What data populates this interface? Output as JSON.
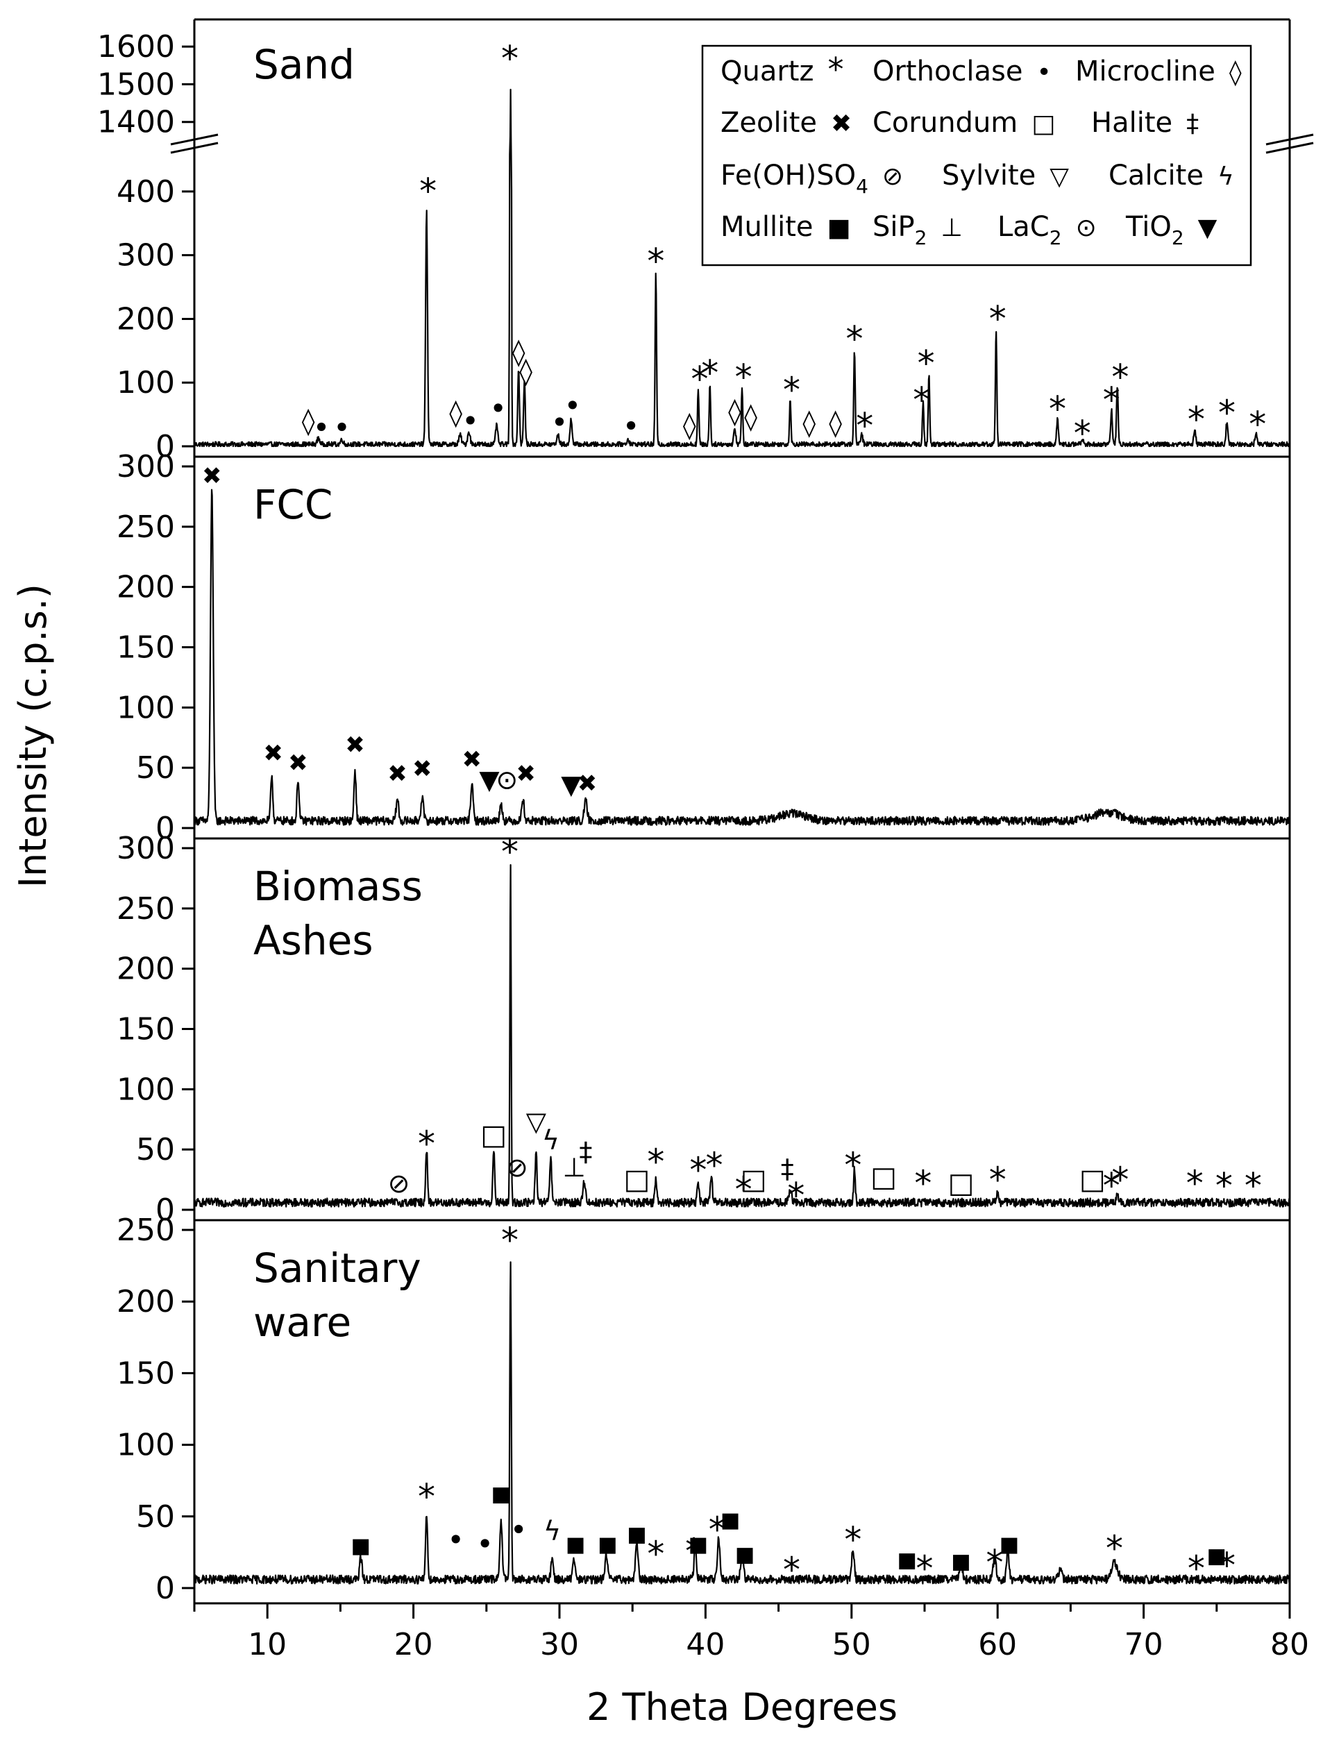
{
  "chart_data": {
    "type": "line",
    "title": "",
    "xlabel": "2 Theta Degrees",
    "ylabel": "Intensity (c.p.s.)",
    "xlim": [
      5,
      80
    ],
    "xticks": [
      "10",
      "20",
      "30",
      "40",
      "50",
      "60",
      "70",
      "80"
    ],
    "legend": [
      {
        "name": "Quartz",
        "symbol": "*"
      },
      {
        "name": "Orthoclase",
        "symbol": "•"
      },
      {
        "name": "Microcline",
        "symbol": "◊"
      },
      {
        "name": "Zeolite",
        "symbol": "✖"
      },
      {
        "name": "Corundum",
        "symbol": "□"
      },
      {
        "name": "Halite",
        "symbol": "‡"
      },
      {
        "name": "Fe(OH)SO",
        "sub": "4",
        "symbol": "⊘"
      },
      {
        "name": "Sylvite",
        "symbol": "▽"
      },
      {
        "name": "Calcite",
        "symbol": "ϟ"
      },
      {
        "name": "Mullite",
        "symbol": "■"
      },
      {
        "name": "SiP",
        "sub": "2",
        "symbol": "⊥"
      },
      {
        "name": "LaC",
        "sub": "2",
        "symbol": "⊙"
      },
      {
        "name": "TiO",
        "sub": "2",
        "symbol": "▼"
      }
    ],
    "series": [
      {
        "name": "Sand",
        "label_lines": [
          "Sand"
        ],
        "ylim": [
          0,
          450
        ],
        "yticks": [
          "0",
          "100",
          "200",
          "300",
          "400"
        ],
        "broken": true,
        "upper_ylim": [
          1370,
          1650
        ],
        "upper_yticks": [
          "1400",
          "1500",
          "1600"
        ],
        "noise": 4,
        "baseline": 3,
        "peaks": [
          [
            13.5,
            10,
            0.12
          ],
          [
            15.1,
            8,
            0.12
          ],
          [
            20.9,
            370,
            0.09
          ],
          [
            23.2,
            15,
            0.12
          ],
          [
            23.8,
            20,
            0.12
          ],
          [
            25.7,
            32,
            0.1
          ],
          [
            26.65,
            1500,
            0.06
          ],
          [
            27.2,
            120,
            0.08
          ],
          [
            27.6,
            100,
            0.08
          ],
          [
            29.9,
            14,
            0.12
          ],
          [
            30.8,
            40,
            0.1
          ],
          [
            34.7,
            8,
            0.12
          ],
          [
            36.6,
            270,
            0.07
          ],
          [
            39.5,
            85,
            0.07
          ],
          [
            40.3,
            95,
            0.07
          ],
          [
            42.0,
            25,
            0.1
          ],
          [
            42.5,
            90,
            0.07
          ],
          [
            45.8,
            72,
            0.07
          ],
          [
            50.2,
            150,
            0.07
          ],
          [
            50.7,
            15,
            0.1
          ],
          [
            54.9,
            65,
            0.07
          ],
          [
            55.3,
            110,
            0.07
          ],
          [
            59.9,
            180,
            0.07
          ],
          [
            64.1,
            40,
            0.08
          ],
          [
            65.8,
            10,
            0.1
          ],
          [
            67.8,
            55,
            0.08
          ],
          [
            68.2,
            90,
            0.08
          ],
          [
            73.5,
            22,
            0.1
          ],
          [
            75.7,
            35,
            0.09
          ],
          [
            77.7,
            18,
            0.1
          ]
        ],
        "markers": [
          [
            "*",
            21.0,
            410
          ],
          [
            "*",
            26.6,
            1585
          ],
          [
            "*",
            36.6,
            300
          ],
          [
            "*",
            39.6,
            115
          ],
          [
            "*",
            40.3,
            125
          ],
          [
            "*",
            42.6,
            118
          ],
          [
            "*",
            45.9,
            98
          ],
          [
            "*",
            50.2,
            178
          ],
          [
            "*",
            50.9,
            42
          ],
          [
            "*",
            55.1,
            140
          ],
          [
            "*",
            54.8,
            82
          ],
          [
            "*",
            60.0,
            210
          ],
          [
            "*",
            64.1,
            68
          ],
          [
            "*",
            65.8,
            30
          ],
          [
            "*",
            67.8,
            82
          ],
          [
            "*",
            68.4,
            118
          ],
          [
            "*",
            73.6,
            52
          ],
          [
            "*",
            75.7,
            62
          ],
          [
            "*",
            77.8,
            44
          ],
          [
            "•",
            13.7,
            28
          ],
          [
            "•",
            15.1,
            28
          ],
          [
            "•",
            23.9,
            38
          ],
          [
            "•",
            25.8,
            58
          ],
          [
            "•",
            30.0,
            36
          ],
          [
            "•",
            30.9,
            62
          ],
          [
            "•",
            34.9,
            30
          ],
          [
            "◊",
            12.8,
            40
          ],
          [
            "◊",
            22.9,
            53
          ],
          [
            "◊",
            27.2,
            148
          ],
          [
            "◊",
            27.7,
            118
          ],
          [
            "◊",
            38.9,
            33
          ],
          [
            "◊",
            42.0,
            55
          ],
          [
            "◊",
            43.1,
            47
          ],
          [
            "◊",
            47.1,
            37
          ],
          [
            "◊",
            48.9,
            37
          ]
        ]
      },
      {
        "name": "FCC",
        "label_lines": [
          "FCC"
        ],
        "ylim": [
          0,
          300
        ],
        "yticks": [
          "0",
          "50",
          "100",
          "150",
          "200",
          "250",
          "300"
        ],
        "noise": 3.5,
        "baseline": 6,
        "peaks": [
          [
            6.2,
            275,
            0.13
          ],
          [
            10.3,
            38,
            0.1
          ],
          [
            12.1,
            35,
            0.1
          ],
          [
            16.0,
            42,
            0.1
          ],
          [
            18.9,
            18,
            0.12
          ],
          [
            20.6,
            20,
            0.12
          ],
          [
            24.0,
            30,
            0.12
          ],
          [
            26.0,
            14,
            0.12
          ],
          [
            27.5,
            18,
            0.12
          ],
          [
            31.8,
            16,
            0.14
          ],
          [
            46.0,
            6,
            1.3
          ],
          [
            67.5,
            7,
            1.3
          ]
        ],
        "markers": [
          [
            "✖",
            6.2,
            293
          ],
          [
            "✖",
            10.4,
            63
          ],
          [
            "✖",
            12.1,
            55
          ],
          [
            "✖",
            16.0,
            70
          ],
          [
            "✖",
            18.9,
            46
          ],
          [
            "✖",
            20.6,
            50
          ],
          [
            "✖",
            24.0,
            58
          ],
          [
            "✖",
            27.7,
            46
          ],
          [
            "✖",
            31.9,
            38
          ],
          [
            "▼",
            25.2,
            40
          ],
          [
            "▼",
            30.8,
            36
          ],
          [
            "⊙",
            26.4,
            40
          ]
        ]
      },
      {
        "name": "Biomass Ashes",
        "label_lines": [
          "Biomass",
          "Ashes"
        ],
        "ylim": [
          0,
          300
        ],
        "yticks": [
          "0",
          "50",
          "100",
          "150",
          "200",
          "250",
          "300"
        ],
        "noise": 3.5,
        "baseline": 6,
        "peaks": [
          [
            20.9,
            45,
            0.09
          ],
          [
            25.5,
            42,
            0.09
          ],
          [
            26.65,
            280,
            0.06
          ],
          [
            28.4,
            42,
            0.09
          ],
          [
            29.4,
            38,
            0.09
          ],
          [
            31.7,
            18,
            0.12
          ],
          [
            36.6,
            20,
            0.1
          ],
          [
            39.5,
            16,
            0.1
          ],
          [
            40.4,
            22,
            0.1
          ],
          [
            45.8,
            12,
            0.12
          ],
          [
            50.2,
            28,
            0.08
          ],
          [
            60.0,
            10,
            0.1
          ],
          [
            68.2,
            10,
            0.1
          ]
        ],
        "markers": [
          [
            "*",
            20.9,
            60
          ],
          [
            "*",
            26.6,
            302
          ],
          [
            "*",
            36.6,
            45
          ],
          [
            "*",
            39.5,
            38
          ],
          [
            "*",
            40.6,
            42
          ],
          [
            "*",
            42.6,
            22
          ],
          [
            "*",
            46.2,
            17
          ],
          [
            "*",
            50.1,
            42
          ],
          [
            "*",
            54.9,
            27
          ],
          [
            "*",
            60.0,
            30
          ],
          [
            "*",
            67.8,
            25
          ],
          [
            "*",
            68.4,
            30
          ],
          [
            "*",
            73.5,
            27
          ],
          [
            "*",
            75.5,
            25
          ],
          [
            "*",
            77.5,
            25
          ],
          [
            "⊘",
            19.0,
            22
          ],
          [
            "⊘",
            27.1,
            35
          ],
          [
            "□",
            25.5,
            62
          ],
          [
            "□",
            35.3,
            25
          ],
          [
            "□",
            43.3,
            25
          ],
          [
            "□",
            52.2,
            27
          ],
          [
            "□",
            57.5,
            22
          ],
          [
            "□",
            66.5,
            25
          ],
          [
            "▽",
            28.4,
            73
          ],
          [
            "ϟ",
            29.4,
            58
          ],
          [
            "‡",
            31.8,
            48
          ],
          [
            "‡",
            45.6,
            34
          ],
          [
            "⊥",
            31.0,
            35
          ]
        ]
      },
      {
        "name": "Sanitary ware",
        "label_lines": [
          "Sanitary",
          "ware"
        ],
        "ylim": [
          0,
          250
        ],
        "yticks": [
          "0",
          "50",
          "100",
          "150",
          "200",
          "250"
        ],
        "noise": 3,
        "baseline": 6,
        "peaks": [
          [
            16.4,
            15,
            0.12
          ],
          [
            20.9,
            45,
            0.1
          ],
          [
            26.0,
            40,
            0.12
          ],
          [
            26.65,
            225,
            0.07
          ],
          [
            29.5,
            14,
            0.12
          ],
          [
            31.0,
            14,
            0.12
          ],
          [
            33.2,
            18,
            0.12
          ],
          [
            35.3,
            26,
            0.12
          ],
          [
            39.3,
            22,
            0.12
          ],
          [
            40.9,
            28,
            0.12
          ],
          [
            42.5,
            14,
            0.15
          ],
          [
            50.1,
            22,
            0.12
          ],
          [
            57.5,
            10,
            0.15
          ],
          [
            59.8,
            14,
            0.15
          ],
          [
            60.7,
            20,
            0.12
          ],
          [
            64.3,
            8,
            0.15
          ],
          [
            68.0,
            12,
            0.3
          ]
        ],
        "markers": [
          [
            "*",
            20.9,
            68
          ],
          [
            "*",
            26.6,
            247
          ],
          [
            "*",
            36.6,
            28
          ],
          [
            "*",
            39.2,
            30
          ],
          [
            "*",
            40.8,
            45
          ],
          [
            "*",
            45.9,
            17
          ],
          [
            "*",
            50.1,
            38
          ],
          [
            "*",
            55.0,
            18
          ],
          [
            "*",
            59.8,
            22
          ],
          [
            "*",
            68.0,
            32
          ],
          [
            "*",
            73.6,
            18
          ],
          [
            "*",
            75.7,
            20
          ],
          [
            "■",
            16.4,
            31
          ],
          [
            "■",
            26.0,
            67
          ],
          [
            "■",
            31.1,
            32
          ],
          [
            "■",
            33.3,
            32
          ],
          [
            "■",
            35.3,
            39
          ],
          [
            "■",
            39.5,
            32
          ],
          [
            "■",
            41.7,
            49
          ],
          [
            "■",
            42.7,
            25
          ],
          [
            "■",
            53.8,
            21
          ],
          [
            "■",
            57.5,
            20
          ],
          [
            "■",
            60.8,
            32
          ],
          [
            "■",
            75.0,
            24
          ],
          [
            "•",
            22.9,
            33
          ],
          [
            "•",
            24.9,
            30
          ],
          [
            "•",
            27.2,
            40
          ],
          [
            "ϟ",
            29.5,
            40
          ]
        ]
      }
    ]
  }
}
